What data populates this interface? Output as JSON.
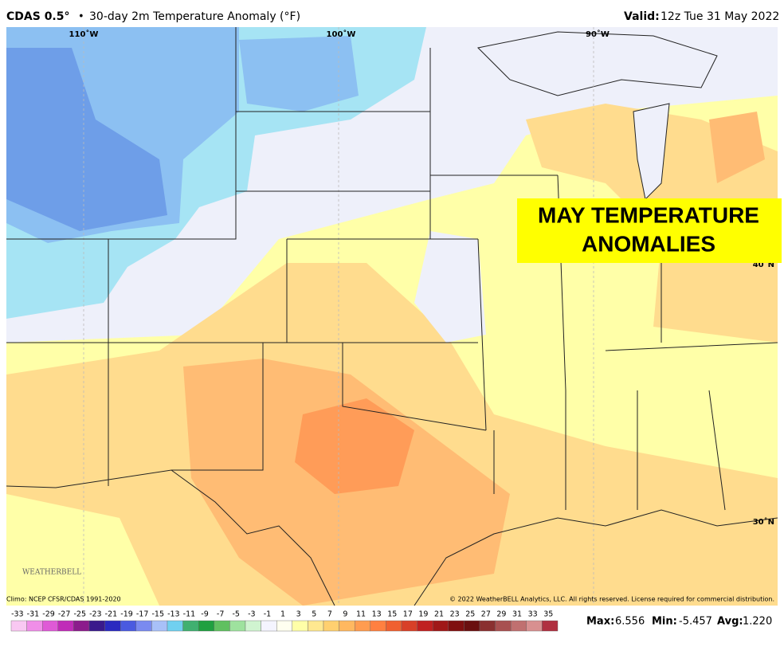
{
  "header": {
    "model": "CDAS 0.5°",
    "separator": "•",
    "title": "30-day 2m Temperature Anomaly (°F)",
    "valid_label": "Valid:",
    "valid_time": "12z Tue 31 May 2022"
  },
  "map": {
    "lon_labels": [
      "110˚W",
      "100˚W",
      "90˚W"
    ],
    "lat_labels": [
      "40˚N",
      "30˚N"
    ],
    "logo": "WEATHERBELL"
  },
  "overlay": {
    "line1": "MAY TEMPERATURE",
    "line2": "ANOMALIES"
  },
  "footer": {
    "climo": "Climo: NCEP CFSR/CDAS 1991-2020",
    "copyright": "© 2022 WeatherBELL Analytics, LLC. All rights reserved. License required for commercial distribution."
  },
  "colorbar": {
    "ticks": [
      -33,
      -31,
      -29,
      -27,
      -25,
      -23,
      -21,
      -19,
      -17,
      -15,
      -13,
      -11,
      -9,
      -7,
      -5,
      -3,
      -1,
      1,
      3,
      5,
      7,
      9,
      11,
      13,
      15,
      17,
      19,
      21,
      23,
      25,
      27,
      29,
      31,
      33,
      35
    ],
    "colors": [
      "#f9c8f2",
      "#f08ee8",
      "#df5ad6",
      "#c02cb8",
      "#8c1c8c",
      "#3a1a8c",
      "#2a2ac0",
      "#4a5ae0",
      "#7a8af0",
      "#a8c0f8",
      "#70d0f0",
      "#40b070",
      "#20a040",
      "#60c060",
      "#9ee29e",
      "#d0f4d0",
      "#f4f4ff",
      "#fffff0",
      "#ffffa8",
      "#ffe890",
      "#ffd070",
      "#ffb860",
      "#ff9c50",
      "#ff8040",
      "#f06030",
      "#d84028",
      "#c02020",
      "#a01818",
      "#801010",
      "#6a1010",
      "#8a3030",
      "#a85050",
      "#c07070",
      "#d89090",
      "#b03040"
    ]
  },
  "stats": {
    "max_label": "Max:",
    "max": "6.556",
    "min_label": "Min:",
    "min": "-5.457",
    "avg_label": "Avg:",
    "avg": "1.220"
  }
}
